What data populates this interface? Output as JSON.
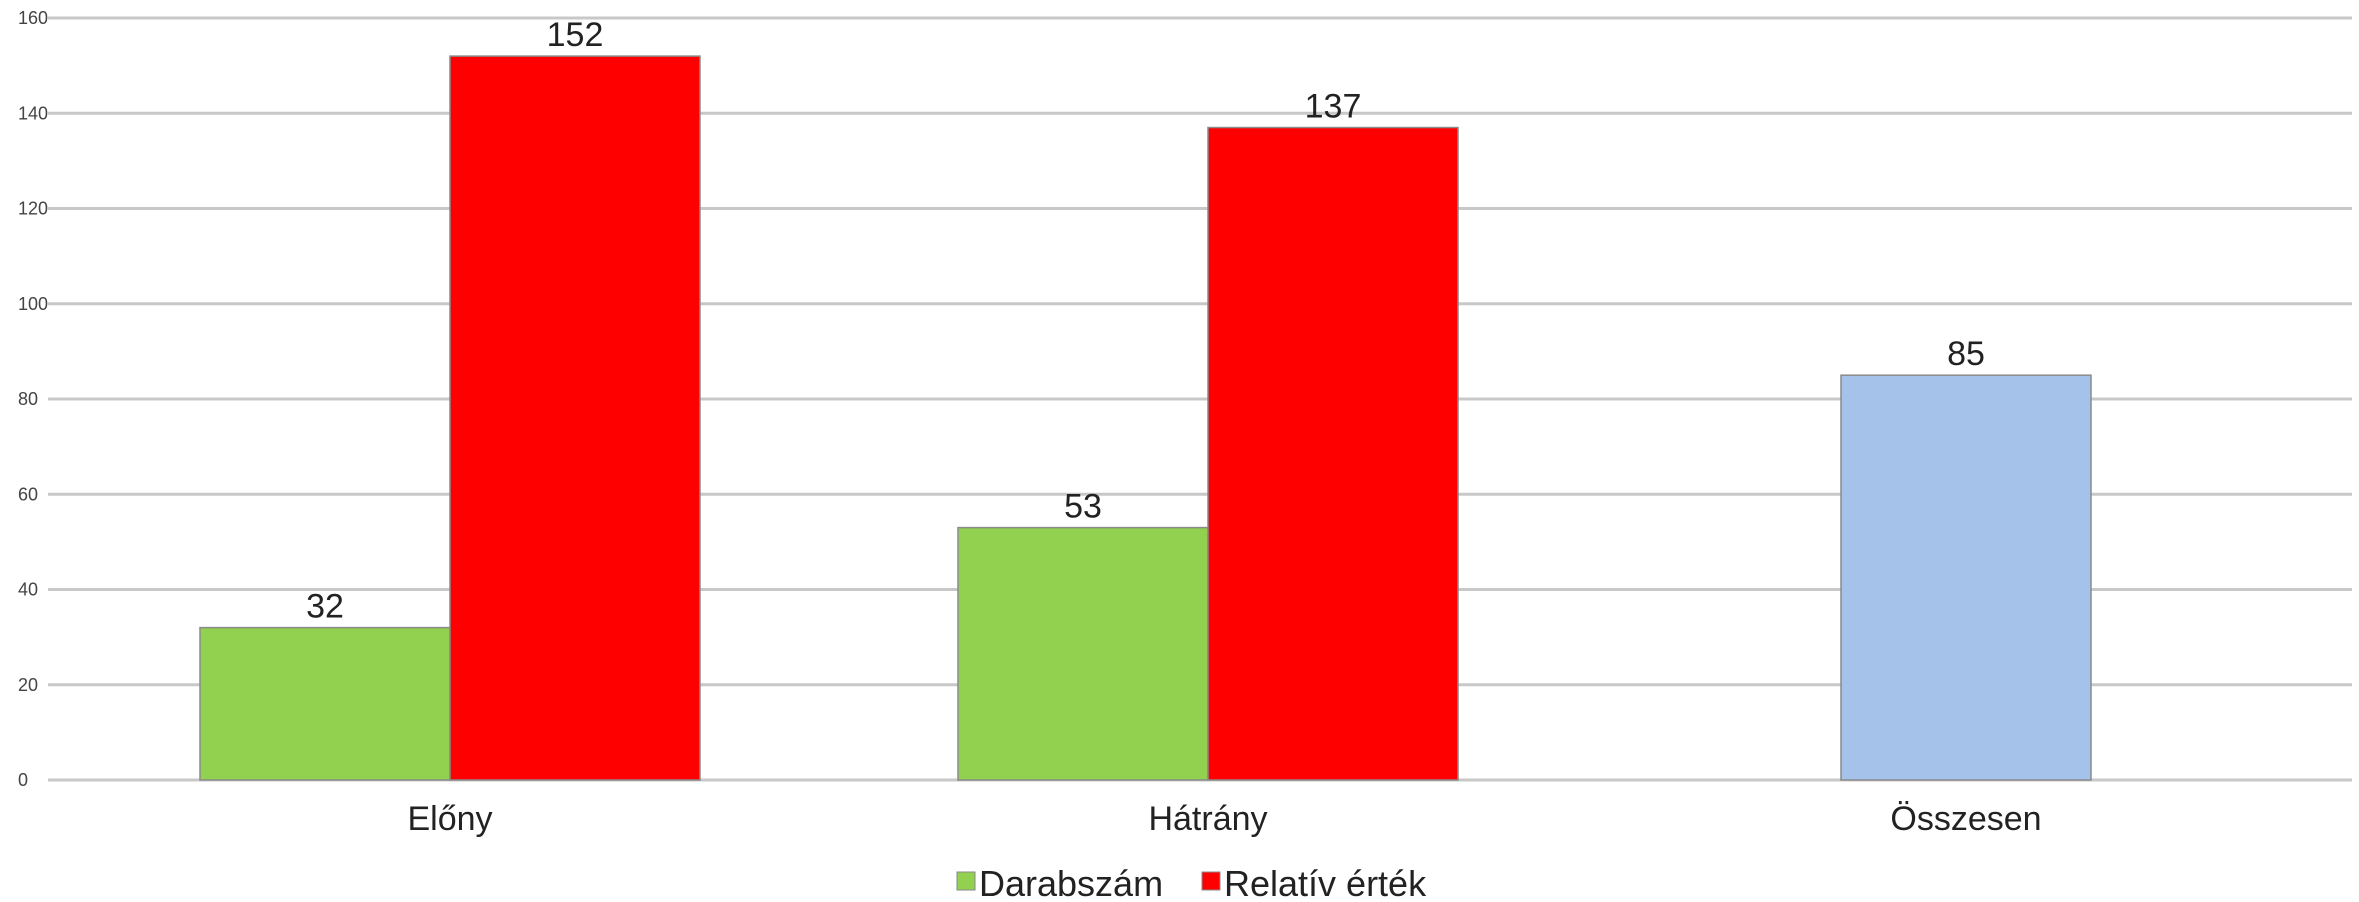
{
  "chart_data": {
    "type": "bar",
    "categories": [
      "Előny",
      "Hátrány",
      "Összesen"
    ],
    "series": [
      {
        "name": "Darabszám",
        "color": "#92d050",
        "values": [
          32,
          53,
          null
        ]
      },
      {
        "name": "Relatív érték",
        "color": "#ff0000",
        "values": [
          152,
          137,
          null
        ]
      },
      {
        "name": "",
        "color": "#a4c2ea",
        "values": [
          null,
          null,
          85
        ]
      }
    ],
    "ylim": [
      0,
      160
    ],
    "yticks": [
      0,
      20,
      40,
      60,
      80,
      100,
      120,
      140,
      160
    ],
    "grid": true,
    "legend_position": "bottom",
    "colors": {
      "gridline": "#c8c8c8",
      "bar_edge": "#8a8a8a"
    }
  }
}
